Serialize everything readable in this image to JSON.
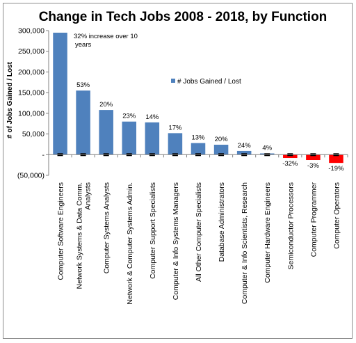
{
  "chart_data": {
    "type": "bar",
    "title": "Change in Tech Jobs 2008 - 2018, by Function",
    "ylabel": "# of Jobs Gained / Lost",
    "xlabel": "",
    "ylim": [
      -50000,
      300000
    ],
    "yticks": [
      -50000,
      0,
      50000,
      100000,
      150000,
      200000,
      250000,
      300000
    ],
    "ytick_labels": [
      "(50,000)",
      "-",
      "50,000",
      "100,000",
      "150,000",
      "200,000",
      "250,000",
      "300,000"
    ],
    "categories": [
      [
        "Computer Software Engineers"
      ],
      [
        "Network Systems & Data Comm.",
        "Analysts"
      ],
      [
        "Computer Systems Analysts"
      ],
      [
        "Network & Computer Systems Admin."
      ],
      [
        "Computer Support Specialists"
      ],
      [
        "Computer & Info Systems Managers"
      ],
      [
        "All Other Computer Specialists"
      ],
      [
        "Database Administrators"
      ],
      [
        "Computer & Info Scientists, Research"
      ],
      [
        "Computer Hardware Engineers"
      ],
      [
        "Semiconductor Processors"
      ],
      [
        "Computer Programmer"
      ],
      [
        "Computer Operators"
      ]
    ],
    "series": [
      {
        "name": "# Jobs Gained / Lost",
        "values": [
          295000,
          155000,
          108000,
          80000,
          78000,
          52000,
          28000,
          24000,
          9000,
          3000,
          -8000,
          -13000,
          -20000
        ]
      }
    ],
    "data_labels": [
      "32% increase over 10 years",
      "53%",
      "20%",
      "23%",
      "14%",
      "17%",
      "13%",
      "20%",
      "24%",
      "4%",
      "-32%",
      "-3%",
      "-19%"
    ],
    "colors": {
      "positive": "#4f81bd",
      "negative": "#ff0000",
      "marker": "#000000"
    },
    "legend_position": "center",
    "grid": false
  }
}
